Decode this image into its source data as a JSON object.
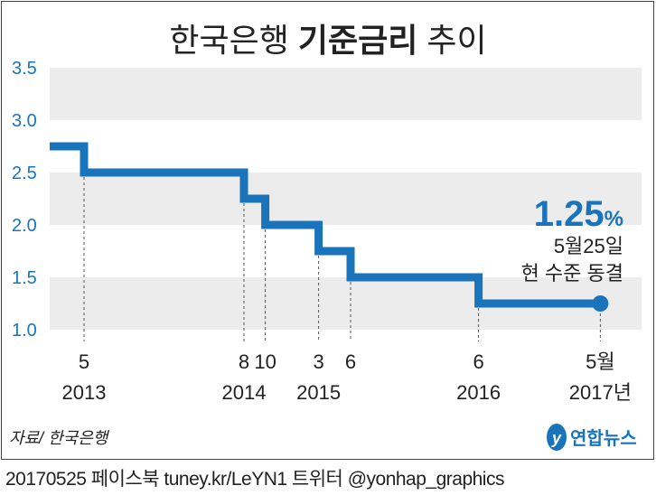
{
  "chart_data": {
    "type": "line",
    "subtype": "step",
    "title_regular": "한국은행",
    "title_bold": "기준금리",
    "title_suffix": "추이",
    "ylim": [
      1.0,
      3.5
    ],
    "yticks": [
      "3.5",
      "3.0",
      "2.5",
      "2.0",
      "1.5",
      "1.0"
    ],
    "ytick_values": [
      3.5,
      3.0,
      2.5,
      2.0,
      1.5,
      1.0
    ],
    "shaded_bands": [
      [
        3.0,
        3.5
      ],
      [
        2.0,
        2.5
      ],
      [
        1.0,
        1.5
      ]
    ],
    "start": {
      "month_index": 1,
      "value": 2.75
    },
    "changes": [
      {
        "month_index": 4,
        "value": 2.5,
        "month_label": "5",
        "year_label": "2013"
      },
      {
        "month_index": 19,
        "value": 2.25,
        "month_label": "8",
        "year_label": "2014"
      },
      {
        "month_index": 21,
        "value": 2.0,
        "month_label": "10",
        "year_label": ""
      },
      {
        "month_index": 26,
        "value": 1.75,
        "month_label": "3",
        "year_label": "2015"
      },
      {
        "month_index": 29,
        "value": 1.5,
        "month_label": "6",
        "year_label": ""
      },
      {
        "month_index": 41,
        "value": 1.25,
        "month_label": "6",
        "year_label": "2016"
      }
    ],
    "end": {
      "month_index": 52,
      "value": 1.25,
      "month_label": "5월",
      "year_label": "2017년"
    },
    "annotation": {
      "value": "1.25",
      "unit": "%",
      "line1": "5월25일",
      "line2": "현 수준 동결"
    },
    "colors": {
      "line": "#1a74bb",
      "band": "#ececec"
    }
  },
  "source": "자료/ 한국은행",
  "logo": "연합뉴스",
  "footer": "20170525 페이스북 tuney.kr/LeYN1 트위터 @yonhap_graphics"
}
